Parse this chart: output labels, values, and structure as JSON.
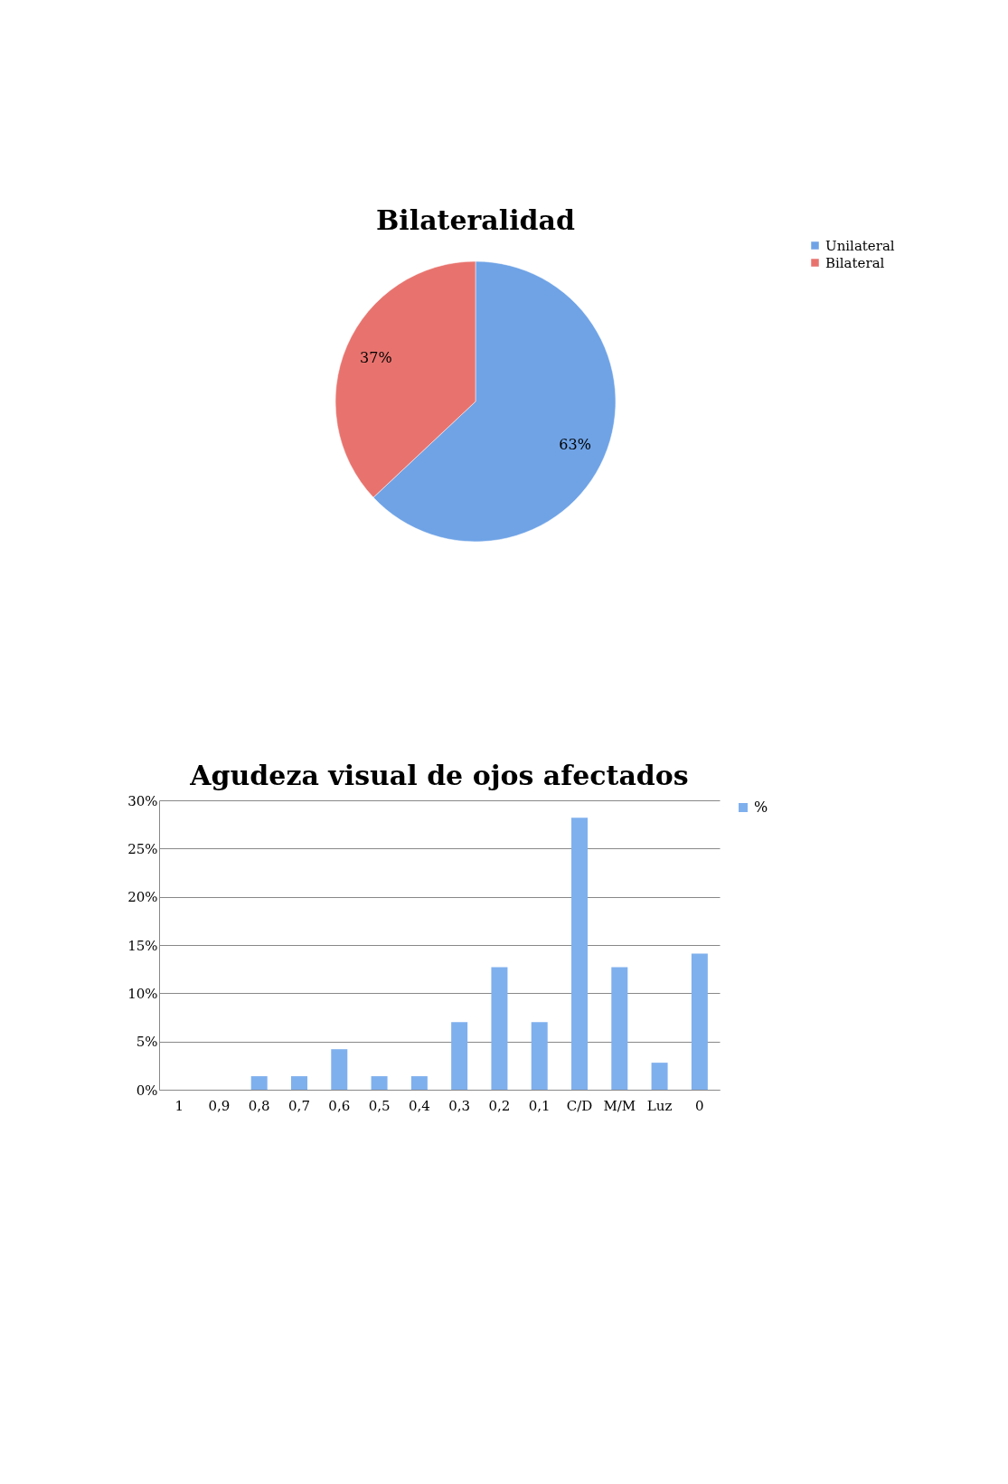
{
  "chart_data": [
    {
      "type": "pie",
      "title": "Bilateralidad",
      "categories": [
        "Unilateral",
        "Bilateral"
      ],
      "values": [
        63,
        37
      ],
      "colors": [
        "#6fa3e6",
        "#e8736e"
      ],
      "value_labels": [
        "63%",
        "37%"
      ],
      "legend": "right"
    },
    {
      "type": "bar",
      "title": "Agudeza visual de ojos afectados",
      "categories": [
        "1",
        "0,9",
        "0,8",
        "0,7",
        "0,6",
        "0,5",
        "0,4",
        "0,3",
        "0,2",
        "0,1",
        "C/D",
        "M/M",
        "Luz",
        "0"
      ],
      "series": [
        {
          "name": "%",
          "color": "#7fb0ee",
          "values": [
            0,
            0,
            1.4,
            1.4,
            4.2,
            1.4,
            1.4,
            7.0,
            12.7,
            7.0,
            28.2,
            12.7,
            2.8,
            14.1
          ]
        }
      ],
      "ylim": [
        0,
        30
      ],
      "yticks": [
        {
          "value": 0,
          "label": "0%"
        },
        {
          "value": 5,
          "label": "5%"
        },
        {
          "value": 10,
          "label": "10%"
        },
        {
          "value": 15,
          "label": "15%"
        },
        {
          "value": 20,
          "label": "20%"
        },
        {
          "value": 25,
          "label": "25%"
        },
        {
          "value": 30,
          "label": "30%"
        }
      ],
      "grid": "y",
      "legend": "right"
    }
  ]
}
